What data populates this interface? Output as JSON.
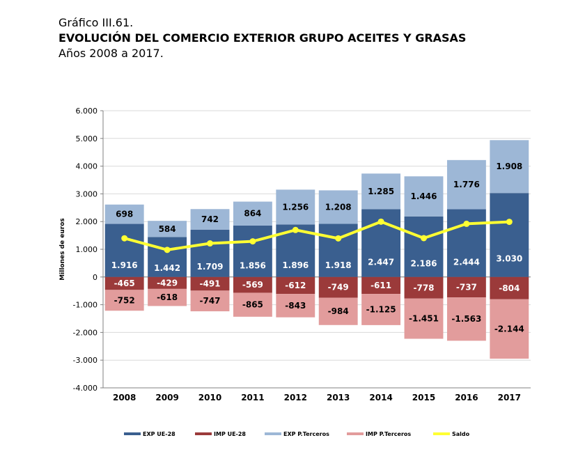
{
  "header": {
    "kicker": "Gráfico III.61.",
    "title": "EVOLUCIÓN DEL COMERCIO EXTERIOR GRUPO ACEITES Y GRASAS",
    "subtitle": "Años 2008 a 2017."
  },
  "chart_data": {
    "type": "bar",
    "stacked": true,
    "categories": [
      "2008",
      "2009",
      "2010",
      "2011",
      "2012",
      "2013",
      "2014",
      "2015",
      "2016",
      "2017"
    ],
    "ylabel": "Millones de euros",
    "ylim": [
      -4000,
      6000
    ],
    "yticks": [
      -4000,
      -3000,
      -2000,
      -1000,
      0,
      1000,
      2000,
      3000,
      4000,
      5000,
      6000
    ],
    "ytick_labels": [
      "-4.000",
      "-3.000",
      "-2.000",
      "-1.000",
      "0",
      "1.000",
      "2.000",
      "3.000",
      "4.000",
      "5.000",
      "6.000"
    ],
    "grid": true,
    "legend_position": "bottom",
    "series": [
      {
        "name": "EXP UE-28",
        "color": "#3a5f8f",
        "label_color": "#ffffff",
        "values": [
          1916,
          1442,
          1709,
          1856,
          1896,
          1918,
          2447,
          2186,
          2444,
          3030
        ],
        "labels": [
          "1.916",
          "1.442",
          "1.709",
          "1.856",
          "1.896",
          "1.918",
          "2.447",
          "2.186",
          "2.444",
          "3.030"
        ]
      },
      {
        "name": "IMP UE-28",
        "color": "#9b3a3a",
        "label_color": "#ffffff",
        "values": [
          -465,
          -429,
          -491,
          -569,
          -612,
          -749,
          -611,
          -778,
          -737,
          -804
        ],
        "labels": [
          "-465",
          "-429",
          "-491",
          "-569",
          "-612",
          "-749",
          "-611",
          "-778",
          "-737",
          "-804"
        ]
      },
      {
        "name": "EXP P.Terceros",
        "color": "#9db7d6",
        "label_color": "#000000",
        "values": [
          698,
          584,
          742,
          864,
          1256,
          1208,
          1285,
          1446,
          1776,
          1908
        ],
        "labels": [
          "698",
          "584",
          "742",
          "864",
          "1.256",
          "1.208",
          "1.285",
          "1.446",
          "1.776",
          "1.908"
        ]
      },
      {
        "name": "IMP P.Terceros",
        "color": "#e29c9c",
        "label_color": "#000000",
        "values": [
          -752,
          -618,
          -747,
          -865,
          -843,
          -984,
          -1125,
          -1451,
          -1563,
          -2144
        ],
        "labels": [
          "-752",
          "-618",
          "-747",
          "-865",
          "-843",
          "-984",
          "-1.125",
          "-1.451",
          "-1.563",
          "-2.144"
        ]
      },
      {
        "name": "Saldo",
        "type": "line",
        "color": "#ffff33",
        "values": [
          1397,
          979,
          1213,
          1286,
          1697,
          1393,
          1996,
          1403,
          1920,
          1990
        ]
      }
    ]
  }
}
